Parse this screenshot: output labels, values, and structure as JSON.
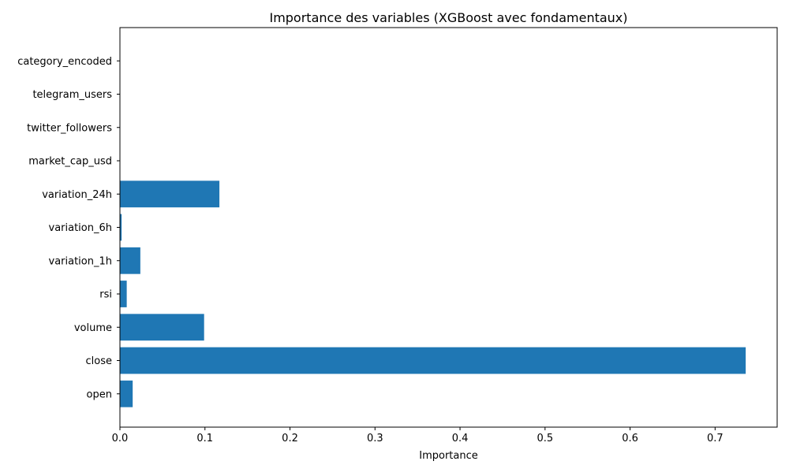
{
  "chart_data": {
    "type": "bar",
    "orientation": "horizontal",
    "title": "Importance des variables (XGBoost avec fondamentaux)",
    "xlabel": "Importance",
    "ylabel": "",
    "categories": [
      "open",
      "close",
      "volume",
      "rsi",
      "variation_1h",
      "variation_6h",
      "variation_24h",
      "market_cap_usd",
      "twitter_followers",
      "telegram_users",
      "category_encoded"
    ],
    "values": [
      0.015,
      0.736,
      0.099,
      0.008,
      0.024,
      0.002,
      0.117,
      0.0,
      0.0,
      0.0,
      0.0
    ],
    "xlim": [
      0,
      0.773
    ],
    "xticks": [
      0.0,
      0.1,
      0.2,
      0.3,
      0.4,
      0.5,
      0.6,
      0.7
    ],
    "xtick_labels": [
      "0.0",
      "0.1",
      "0.2",
      "0.3",
      "0.4",
      "0.5",
      "0.6",
      "0.7"
    ],
    "grid": false,
    "legend": "none",
    "bar_color": "#1f77b4"
  }
}
